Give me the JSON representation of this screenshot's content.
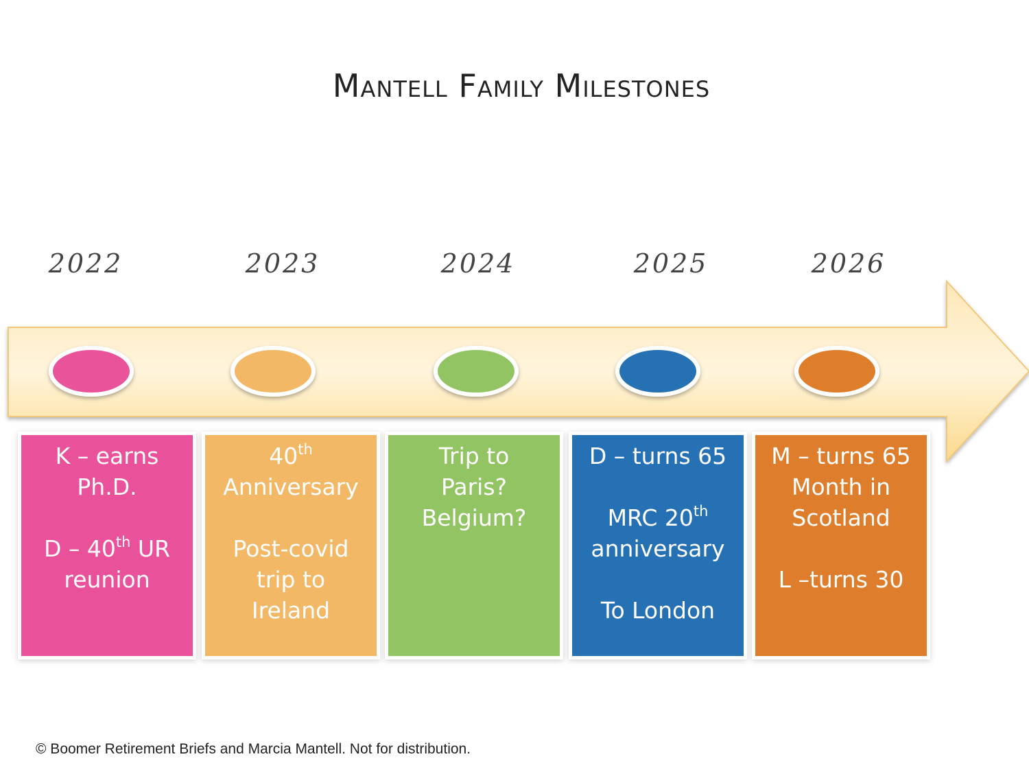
{
  "header": {
    "title": "Mantell Family Milestones"
  },
  "timeline": [
    {
      "year": "2022",
      "color": "#e9529a",
      "paragraphs": [
        [
          [
            "K – earns"
          ],
          [
            "Ph.D."
          ]
        ],
        [
          [
            "D – 40",
            {
              "sup": "th"
            },
            " UR"
          ],
          [
            "reunion"
          ]
        ]
      ]
    },
    {
      "year": "2023",
      "color": "#f2b866",
      "paragraphs": [
        [
          [
            "40",
            {
              "sup": "th"
            }
          ],
          [
            "Anniversary"
          ]
        ],
        [
          [
            "Post-covid"
          ],
          [
            "trip to"
          ],
          [
            "Ireland"
          ]
        ]
      ]
    },
    {
      "year": "2024",
      "color": "#93c464",
      "paragraphs": [
        [
          [
            "Trip to"
          ],
          [
            "Paris?"
          ],
          [
            "Belgium?"
          ]
        ]
      ]
    },
    {
      "year": "2025",
      "color": "#2670b4",
      "paragraphs": [
        [
          [
            "D – turns 65"
          ]
        ],
        [
          [
            "MRC 20",
            {
              "sup": "th"
            }
          ],
          [
            "anniversary"
          ]
        ],
        [
          [
            "To London"
          ]
        ]
      ]
    },
    {
      "year": "2026",
      "color": "#de7e2c",
      "paragraphs": [
        [
          [
            "M – turns 65"
          ],
          [
            "Month in"
          ],
          [
            "Scotland"
          ]
        ],
        [
          [
            "L –turns 30"
          ]
        ]
      ]
    }
  ],
  "footer": "© Boomer Retirement Briefs and Marcia Mantell. Not for distribution."
}
